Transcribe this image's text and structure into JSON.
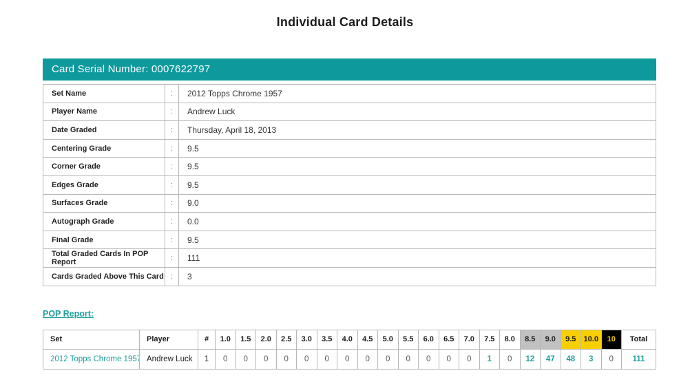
{
  "page": {
    "title": "Individual Card Details",
    "serial_label": "Card Serial Number: 0007622797",
    "pop_report_label": "POP Report: "
  },
  "colors": {
    "teal_bar": "#0e9a9c",
    "teal_link": "#1d9e9e",
    "silver": "#c1c1c1",
    "gold": "#f8cf01",
    "black_cell": "#000000"
  },
  "details_table": {
    "separator": ":",
    "rows": [
      {
        "label": "Set Name",
        "value": "2012 Topps Chrome 1957"
      },
      {
        "label": "Player Name",
        "value": "Andrew Luck"
      },
      {
        "label": "Date Graded",
        "value": "Thursday, April 18, 2013"
      },
      {
        "label": "Centering Grade",
        "value": "9.5"
      },
      {
        "label": "Corner Grade",
        "value": "9.5"
      },
      {
        "label": "Edges Grade",
        "value": "9.5"
      },
      {
        "label": "Surfaces Grade",
        "value": "9.0"
      },
      {
        "label": "Autograph Grade",
        "value": "0.0"
      },
      {
        "label": "Final Grade",
        "value": "9.5"
      },
      {
        "label": "Total Graded Cards In POP Report",
        "value": "111"
      },
      {
        "label": "Cards Graded Above This Card",
        "value": "3"
      }
    ]
  },
  "pop_table": {
    "columns": [
      {
        "label": "Set",
        "bg": "plain",
        "align": "left"
      },
      {
        "label": "Player",
        "bg": "plain",
        "align": "left"
      },
      {
        "label": "#",
        "bg": "plain",
        "align": "center"
      },
      {
        "label": "1.0",
        "bg": "plain",
        "align": "center"
      },
      {
        "label": "1.5",
        "bg": "plain",
        "align": "center"
      },
      {
        "label": "2.0",
        "bg": "plain",
        "align": "center"
      },
      {
        "label": "2.5",
        "bg": "plain",
        "align": "center"
      },
      {
        "label": "3.0",
        "bg": "plain",
        "align": "center"
      },
      {
        "label": "3.5",
        "bg": "plain",
        "align": "center"
      },
      {
        "label": "4.0",
        "bg": "plain",
        "align": "center"
      },
      {
        "label": "4.5",
        "bg": "plain",
        "align": "center"
      },
      {
        "label": "5.0",
        "bg": "plain",
        "align": "center"
      },
      {
        "label": "5.5",
        "bg": "plain",
        "align": "center"
      },
      {
        "label": "6.0",
        "bg": "plain",
        "align": "center"
      },
      {
        "label": "6.5",
        "bg": "plain",
        "align": "center"
      },
      {
        "label": "7.0",
        "bg": "plain",
        "align": "center"
      },
      {
        "label": "7.5",
        "bg": "plain",
        "align": "center"
      },
      {
        "label": "8.0",
        "bg": "plain",
        "align": "center"
      },
      {
        "label": "8.5",
        "bg": "silver",
        "align": "center"
      },
      {
        "label": "9.0",
        "bg": "silver",
        "align": "center"
      },
      {
        "label": "9.5",
        "bg": "gold",
        "align": "center"
      },
      {
        "label": "10.0",
        "bg": "gold",
        "align": "center"
      },
      {
        "label": "10",
        "bg": "black",
        "align": "center"
      },
      {
        "label": "Total",
        "bg": "plain",
        "align": "center"
      }
    ],
    "row": {
      "set": "2012 Topps Chrome 1957",
      "player": "Andrew Luck",
      "values": [
        {
          "v": "1",
          "hl": false,
          "dark": true
        },
        {
          "v": "0",
          "hl": false
        },
        {
          "v": "0",
          "hl": false
        },
        {
          "v": "0",
          "hl": false
        },
        {
          "v": "0",
          "hl": false
        },
        {
          "v": "0",
          "hl": false
        },
        {
          "v": "0",
          "hl": false
        },
        {
          "v": "0",
          "hl": false
        },
        {
          "v": "0",
          "hl": false
        },
        {
          "v": "0",
          "hl": false
        },
        {
          "v": "0",
          "hl": false
        },
        {
          "v": "0",
          "hl": false
        },
        {
          "v": "0",
          "hl": false
        },
        {
          "v": "0",
          "hl": false
        },
        {
          "v": "1",
          "hl": true
        },
        {
          "v": "0",
          "hl": false
        },
        {
          "v": "12",
          "hl": true
        },
        {
          "v": "47",
          "hl": true
        },
        {
          "v": "48",
          "hl": true
        },
        {
          "v": "3",
          "hl": true
        },
        {
          "v": "0",
          "hl": false
        },
        {
          "v": "111",
          "hl": true
        }
      ]
    }
  }
}
